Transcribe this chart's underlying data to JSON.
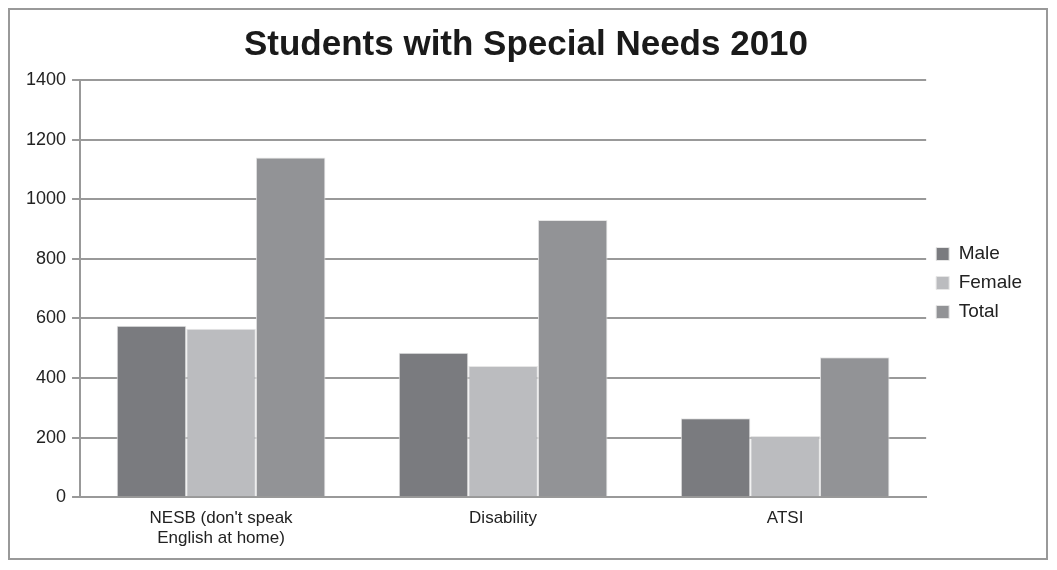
{
  "chart_data": {
    "type": "bar",
    "title": "Students with Special Needs 2010",
    "categories": [
      "NESB (don't speak English at home)",
      "Disability",
      "ATSI"
    ],
    "series": [
      {
        "name": "Male",
        "color": "#7a7b7f",
        "values": [
          575,
          485,
          265
        ]
      },
      {
        "name": "Female",
        "color": "#bbbcbf",
        "values": [
          565,
          440,
          205
        ]
      },
      {
        "name": "Total",
        "color": "#929396",
        "values": [
          1140,
          930,
          470
        ]
      }
    ],
    "ylim": [
      0,
      1400
    ],
    "yticks": [
      0,
      200,
      400,
      600,
      800,
      1000,
      1200,
      1400
    ],
    "grid": "y",
    "legend": "right"
  }
}
